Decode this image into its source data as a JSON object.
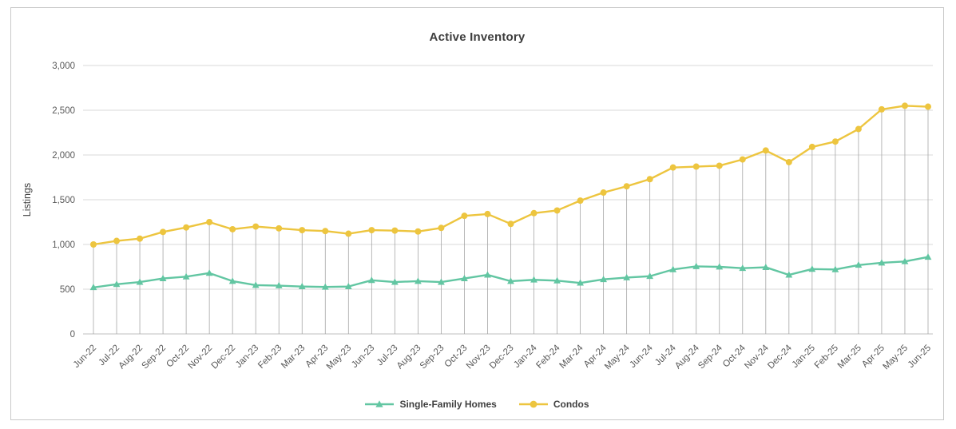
{
  "chart_data": {
    "type": "line",
    "title": "Active Inventory",
    "xlabel": "",
    "ylabel": "Listings",
    "ylim": [
      0,
      3000
    ],
    "ytick_step": 500,
    "grid": true,
    "drop_lines": true,
    "legend_position": "bottom",
    "categories": [
      "Jun-22",
      "Jul-22",
      "Aug-22",
      "Sep-22",
      "Oct-22",
      "Nov-22",
      "Dec-22",
      "Jan-23",
      "Feb-23",
      "Mar-23",
      "Apr-23",
      "May-23",
      "Jun-23",
      "Jul-23",
      "Aug-23",
      "Sep-23",
      "Oct-23",
      "Nov-23",
      "Dec-23",
      "Jan-24",
      "Feb-24",
      "Mar-24",
      "Apr-24",
      "May-24",
      "Jun-24",
      "Jul-24",
      "Aug-24",
      "Sep-24",
      "Oct-24",
      "Nov-24",
      "Dec-24",
      "Jan-25",
      "Feb-25",
      "Mar-25",
      "Apr-25",
      "May-25",
      "Jun-25"
    ],
    "series": [
      {
        "name": "Single-Family Homes",
        "color": "#62c6a2",
        "marker": "triangle",
        "values": [
          520,
          555,
          580,
          620,
          640,
          680,
          590,
          545,
          540,
          530,
          525,
          530,
          600,
          580,
          590,
          580,
          620,
          660,
          590,
          605,
          595,
          570,
          610,
          630,
          645,
          720,
          755,
          750,
          735,
          745,
          660,
          725,
          720,
          770,
          795,
          810,
          860
        ]
      },
      {
        "name": "Condos",
        "color": "#edc53f",
        "marker": "circle",
        "values": [
          1000,
          1040,
          1065,
          1140,
          1190,
          1250,
          1170,
          1200,
          1180,
          1160,
          1150,
          1120,
          1160,
          1155,
          1145,
          1185,
          1320,
          1340,
          1230,
          1350,
          1380,
          1490,
          1580,
          1650,
          1730,
          1860,
          1870,
          1880,
          1950,
          2050,
          1920,
          2090,
          2150,
          2290,
          2510,
          2550,
          2540
        ]
      }
    ],
    "colors": {
      "gridline": "#d9d9d9",
      "axis_line": "#bfbfbf",
      "drop_line": "#a6a6a6",
      "tick_label": "#595959",
      "title_text": "#3d3d3d"
    }
  }
}
